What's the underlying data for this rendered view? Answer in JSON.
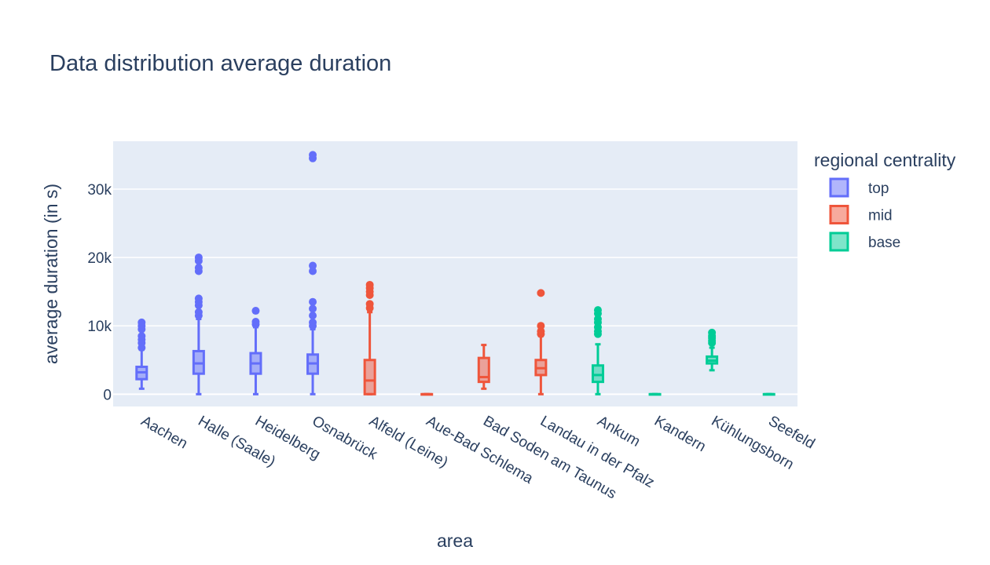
{
  "chart_data": {
    "type": "box",
    "title": "Data distribution average duration",
    "xlabel": "area",
    "ylabel": "average duration (in s)",
    "ylim": [
      -1800,
      37000
    ],
    "yticks": [
      0,
      10000,
      20000,
      30000
    ],
    "ytick_labels": [
      "0",
      "10k",
      "20k",
      "30k"
    ],
    "grid": true,
    "legend": {
      "title": "regional centrality",
      "placement": "right"
    },
    "categories": [
      "Aachen",
      "Halle (Saale)",
      "Heidelberg",
      "Osnabrück",
      "Alfeld (Leine)",
      "Aue-Bad Schlema",
      "Bad Soden am Taunus",
      "Landau in der Pfalz",
      "Ankum",
      "Kandern",
      "Kühlungsborn",
      "Seefeld"
    ],
    "series": [
      {
        "name": "top",
        "color": "#636efa",
        "boxes": [
          {
            "category": "Aachen",
            "min": 800,
            "q1": 2200,
            "median": 3200,
            "q3": 4000,
            "max": 6500,
            "outliers": [
              6800,
              7500,
              8000,
              8500,
              9500,
              10000,
              10500
            ]
          },
          {
            "category": "Halle (Saale)",
            "min": 0,
            "q1": 3000,
            "median": 4500,
            "q3": 6300,
            "max": 11000,
            "outliers": [
              11500,
              12000,
              13000,
              13500,
              14000,
              18000,
              18500,
              19500,
              20000
            ]
          },
          {
            "category": "Heidelberg",
            "min": 0,
            "q1": 3000,
            "median": 4500,
            "q3": 6000,
            "max": 9800,
            "outliers": [
              10200,
              10600,
              12200
            ]
          },
          {
            "category": "Osnabrück",
            "min": 0,
            "q1": 3000,
            "median": 4500,
            "q3": 5800,
            "max": 9500,
            "outliers": [
              10000,
              10500,
              11500,
              12500,
              13500,
              18000,
              18800,
              34500,
              35000
            ]
          }
        ]
      },
      {
        "name": "mid",
        "color": "#ef553b",
        "boxes": [
          {
            "category": "Alfeld (Leine)",
            "min": 0,
            "q1": 0,
            "median": 2000,
            "q3": 5000,
            "max": 12000,
            "outliers": [
              12600,
              13200,
              14500,
              15000,
              15500,
              16000
            ]
          },
          {
            "category": "Aue-Bad Schlema",
            "min": 0,
            "q1": 0,
            "median": 0,
            "q3": 0,
            "max": 0,
            "outliers": []
          },
          {
            "category": "Bad Soden am Taunus",
            "min": 800,
            "q1": 1800,
            "median": 2500,
            "q3": 5300,
            "max": 7200,
            "outliers": []
          },
          {
            "category": "Landau in der Pfalz",
            "min": 0,
            "q1": 2800,
            "median": 3800,
            "q3": 5000,
            "max": 8500,
            "outliers": [
              8800,
              9200,
              10000,
              14800
            ]
          }
        ]
      },
      {
        "name": "base",
        "color": "#00cc96",
        "boxes": [
          {
            "category": "Ankum",
            "min": 0,
            "q1": 1800,
            "median": 2800,
            "q3": 4200,
            "max": 7300,
            "outliers": [
              8800,
              9200,
              9800,
              10500,
              11000,
              11800,
              12300
            ]
          },
          {
            "category": "Kandern",
            "min": 0,
            "q1": 0,
            "median": 0,
            "q3": 0,
            "max": 0,
            "outliers": []
          },
          {
            "category": "Kühlungsborn",
            "min": 3500,
            "q1": 4500,
            "median": 4900,
            "q3": 5500,
            "max": 6800,
            "outliers": [
              7500,
              7800,
              8200,
              8500,
              9000
            ]
          },
          {
            "category": "Seefeld",
            "min": 0,
            "q1": 0,
            "median": 0,
            "q3": 0,
            "max": 0,
            "outliers": []
          }
        ]
      }
    ]
  }
}
